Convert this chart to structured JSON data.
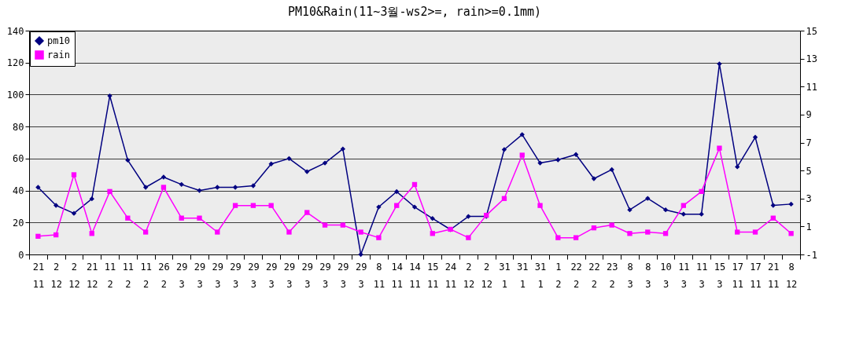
{
  "chart_data": {
    "type": "line",
    "title": "PM10&Rain(11~3월-ws2>=, rain>=0.1mm)",
    "categories": [
      "21 11",
      "2 12",
      "2 12",
      "21 12",
      "11 2",
      "11 2",
      "11 2",
      "26 2",
      "29 3",
      "29 3",
      "29 3",
      "29 3",
      "29 3",
      "29 3",
      "29 3",
      "29 3",
      "29 3",
      "29 3",
      "29 3",
      "8 11",
      "14 11",
      "14 11",
      "15 11",
      "24 11",
      "2 12",
      "2 12",
      "31 1",
      "31 1",
      "31 1",
      "1 2",
      "22 2",
      "22 2",
      "23 2",
      "8 3",
      "8 3",
      "10 3",
      "11 3",
      "11 3",
      "15 3",
      "17 11",
      "17 11",
      "21 11",
      "8 12"
    ],
    "series": [
      {
        "name": "pm10",
        "color": "#000080",
        "marker": "diamond",
        "values": [
          42,
          30.7,
          25.7,
          34.8,
          99.2,
          59,
          42,
          48.4,
          43.8,
          40,
          42,
          42,
          43,
          56.6,
          60,
          51.8,
          57.2,
          66,
          0,
          29.7,
          39.3,
          29.7,
          22.5,
          15.6,
          23.8,
          23.8,
          65.6,
          75,
          57.2,
          59.2,
          62.5,
          47.4,
          53.1,
          27.9,
          35.1,
          27.9,
          25.2,
          25.2,
          119.2,
          54.8,
          73.3,
          30.7,
          31.5
        ]
      },
      {
        "name": "rain",
        "color": "#ff00ff",
        "marker": "square",
        "axis": "y2",
        "values": [
          0.3,
          0.4,
          4.7,
          0.5,
          3.5,
          1.6,
          0.6,
          3.8,
          1.6,
          1.6,
          0.6,
          2.5,
          2.5,
          2.5,
          0.6,
          2,
          1.1,
          1.1,
          0.6,
          0.2,
          2.5,
          4,
          0.5,
          0.8,
          0.2,
          1.8,
          3,
          6.1,
          2.5,
          0.2,
          0.2,
          0.9,
          1.1,
          0.5,
          0.6,
          0.5,
          2.5,
          3.5,
          6.6,
          0.6,
          0.6,
          1.6,
          0.5
        ]
      }
    ],
    "ylim": [
      0,
      140
    ],
    "yticks": [
      0,
      20,
      40,
      60,
      80,
      100,
      120,
      140
    ],
    "y2lim": [
      -1,
      15
    ],
    "y2ticks": [
      -1,
      1,
      3,
      5,
      7,
      9,
      11,
      13,
      15
    ],
    "grid": "y",
    "legend": "top left"
  }
}
